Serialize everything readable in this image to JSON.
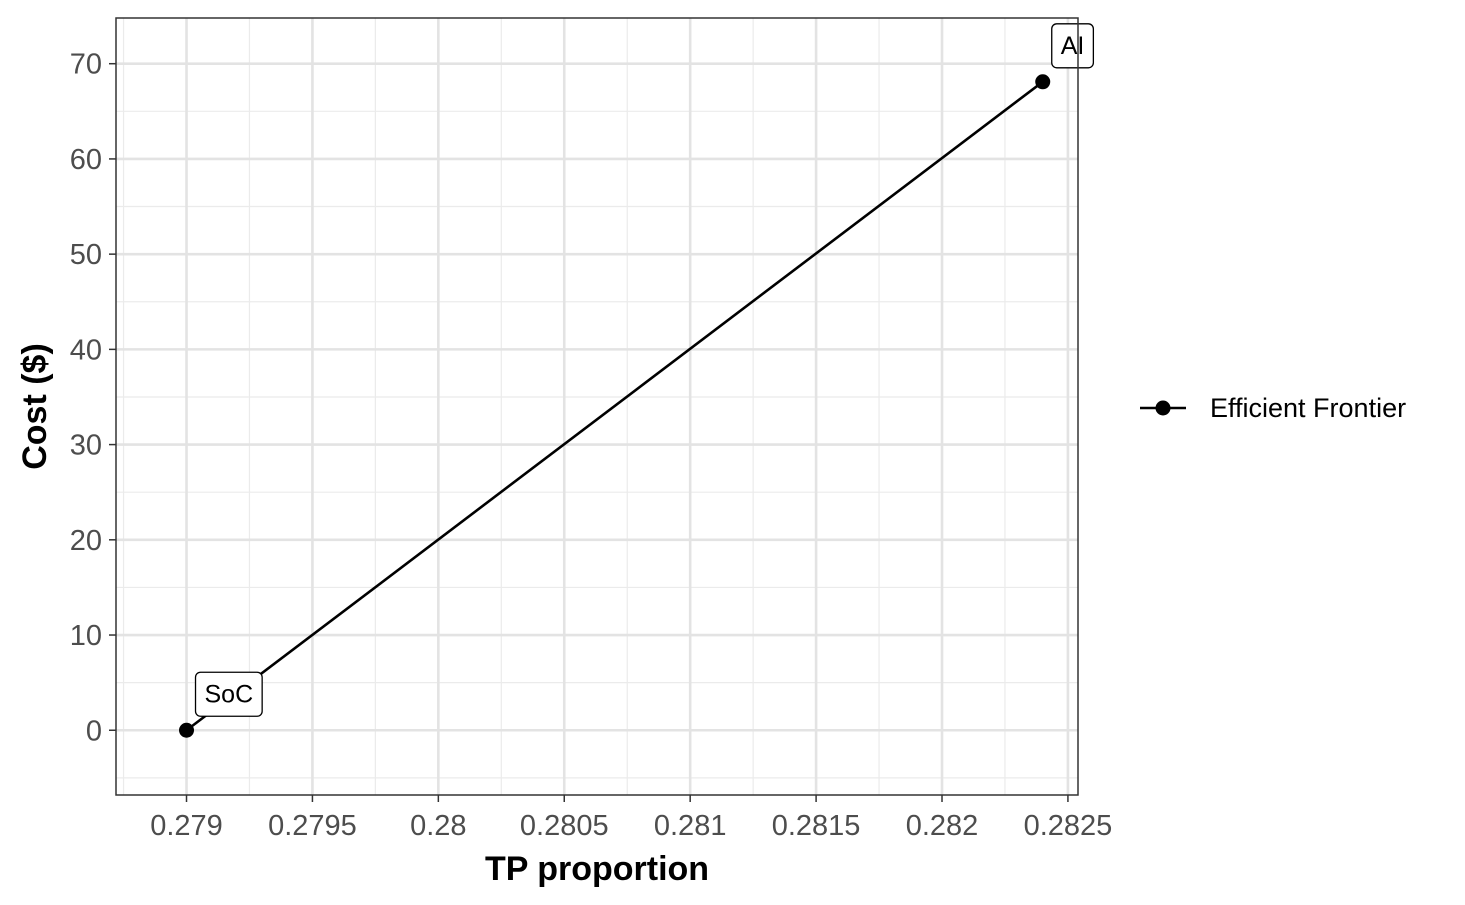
{
  "chart_data": {
    "type": "line",
    "title": "",
    "xlabel": "TP proportion",
    "ylabel": "Cost ($)",
    "xlim": [
      0.27872,
      0.28254
    ],
    "ylim": [
      -6.8,
      74.8
    ],
    "x_ticks": [
      0.279,
      0.2795,
      0.28,
      0.2805,
      0.281,
      0.2815,
      0.282,
      0.2825
    ],
    "x_tick_labels": [
      "0.279",
      "0.2795",
      "0.28",
      "0.2805",
      "0.281",
      "0.2815",
      "0.282",
      "0.2825"
    ],
    "y_ticks": [
      0,
      10,
      20,
      30,
      40,
      50,
      60,
      70
    ],
    "y_tick_labels": [
      "0",
      "10",
      "20",
      "30",
      "40",
      "50",
      "60",
      "70"
    ],
    "grid": true,
    "legend_position": "right",
    "series": [
      {
        "name": "Efficient Frontier",
        "color": "#000000",
        "points": [
          {
            "x": 0.279,
            "y": 0,
            "label": "SoC"
          },
          {
            "x": 0.2824,
            "y": 68.1,
            "label": "AI"
          }
        ]
      }
    ]
  }
}
